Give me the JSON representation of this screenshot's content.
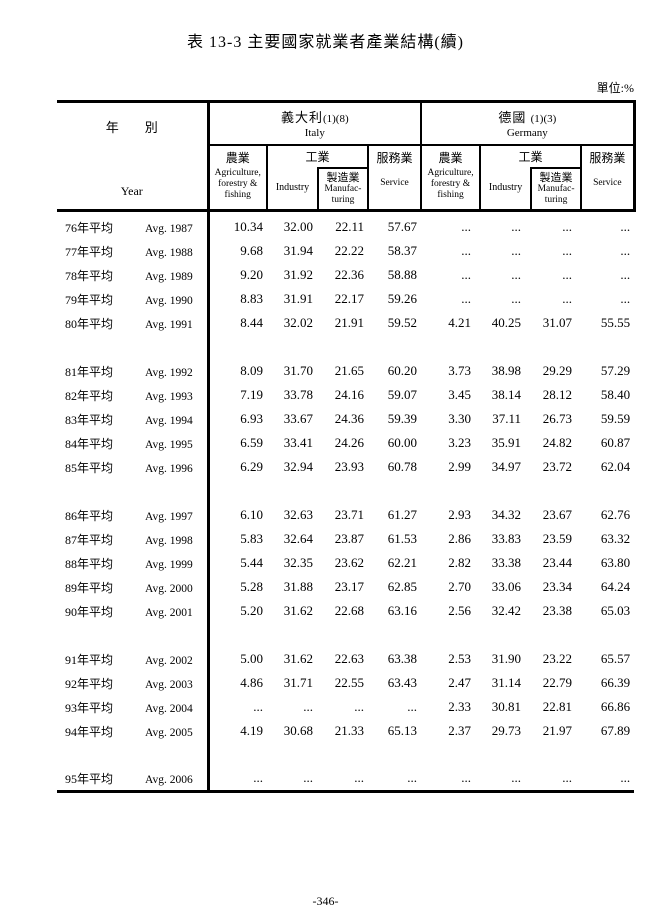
{
  "title": "表 13-3 主要國家就業者產業結構(續)",
  "unit_label": "單位:%",
  "page_number": "-346-",
  "table": {
    "year_header": {
      "zh": "年　　別",
      "en": "Year"
    },
    "countries": [
      {
        "zh": "義大利",
        "footnote": "(1)(8)",
        "en": "Italy"
      },
      {
        "zh": "德國",
        "footnote": "(1)(3)",
        "en": "Germany"
      }
    ],
    "columns": {
      "agriculture_zh": "農業",
      "agriculture_en": "Agriculture,\nforestry &\nfishing",
      "industry_group_zh": "工業",
      "industry_en": "Industry",
      "manufacturing_zh": "製造業",
      "manufacturing_en": "Manufac-\nturing",
      "service_zh": "服務業",
      "service_en": "Service"
    },
    "row_groups": [
      [
        {
          "year_zh": "76年平均",
          "year_en": "Avg. 1987",
          "values": [
            "10.34",
            "32.00",
            "22.11",
            "57.67",
            "...",
            "...",
            "...",
            "..."
          ]
        },
        {
          "year_zh": "77年平均",
          "year_en": "Avg. 1988",
          "values": [
            "9.68",
            "31.94",
            "22.22",
            "58.37",
            "...",
            "...",
            "...",
            "..."
          ]
        },
        {
          "year_zh": "78年平均",
          "year_en": "Avg. 1989",
          "values": [
            "9.20",
            "31.92",
            "22.36",
            "58.88",
            "...",
            "...",
            "...",
            "..."
          ]
        },
        {
          "year_zh": "79年平均",
          "year_en": "Avg. 1990",
          "values": [
            "8.83",
            "31.91",
            "22.17",
            "59.26",
            "...",
            "...",
            "...",
            "..."
          ]
        },
        {
          "year_zh": "80年平均",
          "year_en": "Avg. 1991",
          "values": [
            "8.44",
            "32.02",
            "21.91",
            "59.52",
            "4.21",
            "40.25",
            "31.07",
            "55.55"
          ]
        }
      ],
      [
        {
          "year_zh": "81年平均",
          "year_en": "Avg. 1992",
          "values": [
            "8.09",
            "31.70",
            "21.65",
            "60.20",
            "3.73",
            "38.98",
            "29.29",
            "57.29"
          ]
        },
        {
          "year_zh": "82年平均",
          "year_en": "Avg. 1993",
          "values": [
            "7.19",
            "33.78",
            "24.16",
            "59.07",
            "3.45",
            "38.14",
            "28.12",
            "58.40"
          ]
        },
        {
          "year_zh": "83年平均",
          "year_en": "Avg. 1994",
          "values": [
            "6.93",
            "33.67",
            "24.36",
            "59.39",
            "3.30",
            "37.11",
            "26.73",
            "59.59"
          ]
        },
        {
          "year_zh": "84年平均",
          "year_en": "Avg. 1995",
          "values": [
            "6.59",
            "33.41",
            "24.26",
            "60.00",
            "3.23",
            "35.91",
            "24.82",
            "60.87"
          ]
        },
        {
          "year_zh": "85年平均",
          "year_en": "Avg. 1996",
          "values": [
            "6.29",
            "32.94",
            "23.93",
            "60.78",
            "2.99",
            "34.97",
            "23.72",
            "62.04"
          ]
        }
      ],
      [
        {
          "year_zh": "86年平均",
          "year_en": "Avg. 1997",
          "values": [
            "6.10",
            "32.63",
            "23.71",
            "61.27",
            "2.93",
            "34.32",
            "23.67",
            "62.76"
          ]
        },
        {
          "year_zh": "87年平均",
          "year_en": "Avg. 1998",
          "values": [
            "5.83",
            "32.64",
            "23.87",
            "61.53",
            "2.86",
            "33.83",
            "23.59",
            "63.32"
          ]
        },
        {
          "year_zh": "88年平均",
          "year_en": "Avg. 1999",
          "values": [
            "5.44",
            "32.35",
            "23.62",
            "62.21",
            "2.82",
            "33.38",
            "23.44",
            "63.80"
          ]
        },
        {
          "year_zh": "89年平均",
          "year_en": "Avg. 2000",
          "values": [
            "5.28",
            "31.88",
            "23.17",
            "62.85",
            "2.70",
            "33.06",
            "23.34",
            "64.24"
          ]
        },
        {
          "year_zh": "90年平均",
          "year_en": "Avg. 2001",
          "values": [
            "5.20",
            "31.62",
            "22.68",
            "63.16",
            "2.56",
            "32.42",
            "23.38",
            "65.03"
          ]
        }
      ],
      [
        {
          "year_zh": "91年平均",
          "year_en": "Avg. 2002",
          "values": [
            "5.00",
            "31.62",
            "22.63",
            "63.38",
            "2.53",
            "31.90",
            "23.22",
            "65.57"
          ]
        },
        {
          "year_zh": "92年平均",
          "year_en": "Avg. 2003",
          "values": [
            "4.86",
            "31.71",
            "22.55",
            "63.43",
            "2.47",
            "31.14",
            "22.79",
            "66.39"
          ]
        },
        {
          "year_zh": "93年平均",
          "year_en": "Avg. 2004",
          "values": [
            "...",
            "...",
            "...",
            "...",
            "2.33",
            "30.81",
            "22.81",
            "66.86"
          ]
        },
        {
          "year_zh": "94年平均",
          "year_en": "Avg. 2005",
          "values": [
            "4.19",
            "30.68",
            "21.33",
            "65.13",
            "2.37",
            "29.73",
            "21.97",
            "67.89"
          ]
        }
      ],
      [
        {
          "year_zh": "95年平均",
          "year_en": "Avg. 2006",
          "values": [
            "...",
            "...",
            "...",
            "...",
            "...",
            "...",
            "...",
            "..."
          ]
        }
      ]
    ]
  }
}
